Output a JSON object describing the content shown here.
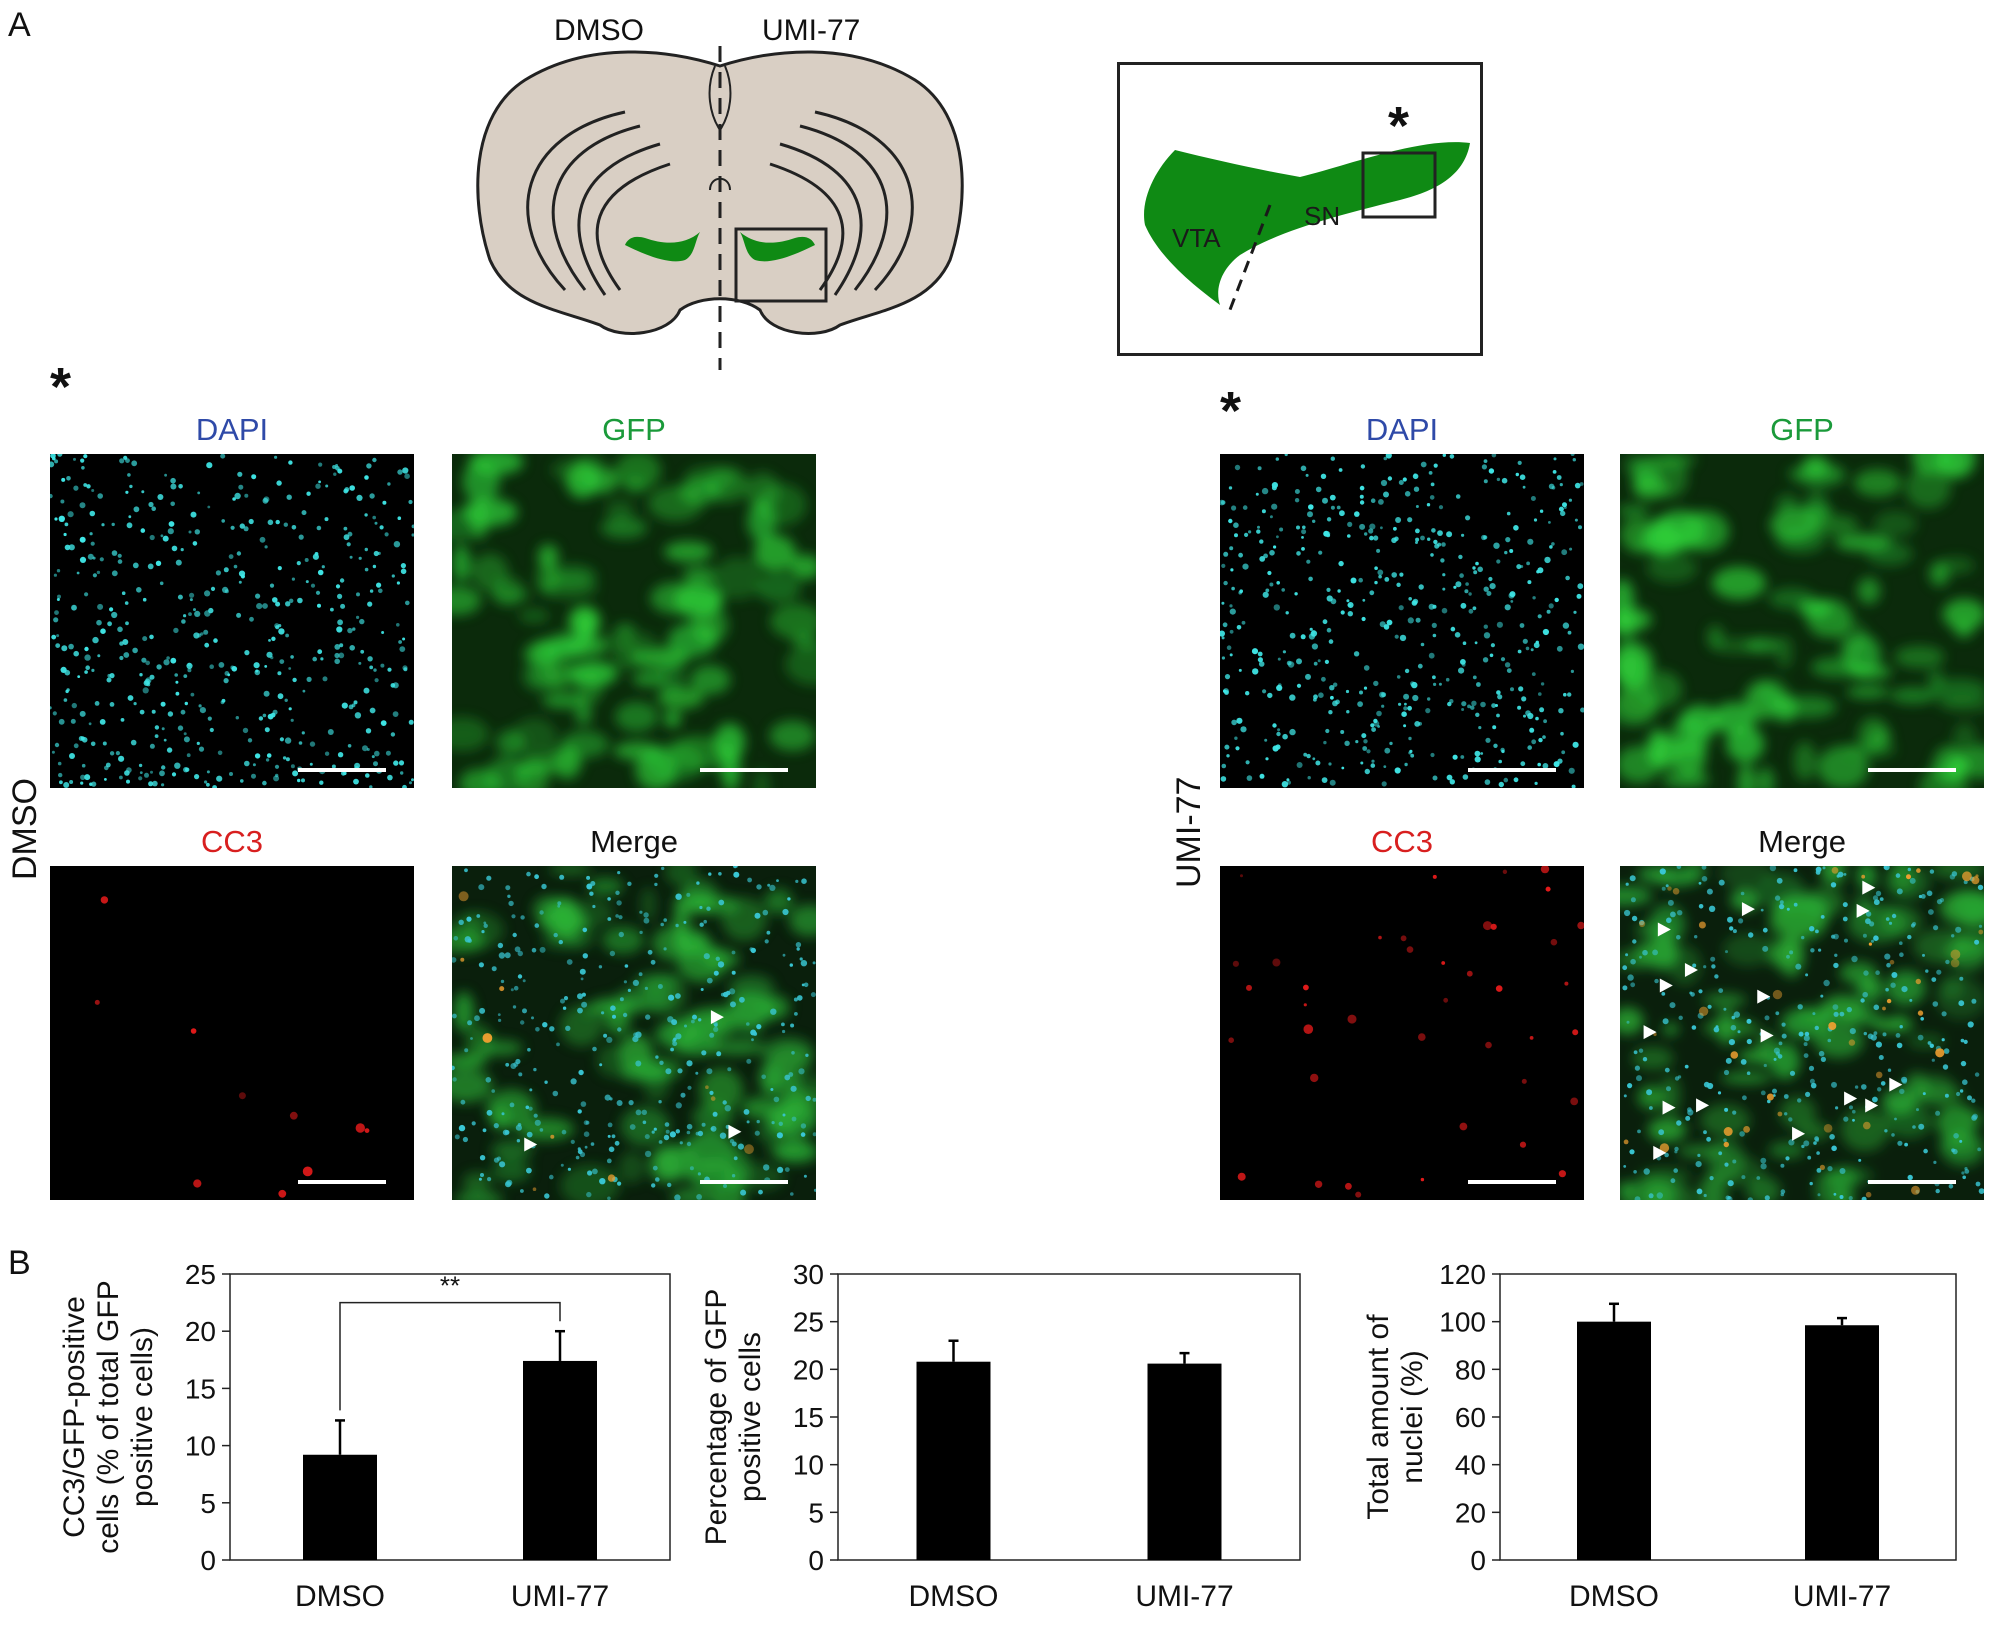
{
  "panel_a": {
    "letter": "A",
    "schematic": {
      "left_label": "DMSO",
      "right_label": "UMI-77"
    },
    "inset": {
      "vta_label": "VTA",
      "sn_label": "SN",
      "star": "*"
    },
    "left_group": {
      "star": "*",
      "condition": "DMSO",
      "channels": {
        "dapi": "DAPI",
        "gfp": "GFP",
        "cc3": "CC3",
        "merge": "Merge"
      }
    },
    "right_group": {
      "star": "*",
      "condition": "UMI-77",
      "channels": {
        "dapi": "DAPI",
        "gfp": "GFP",
        "cc3": "CC3",
        "merge": "Merge"
      }
    },
    "colors": {
      "dapi": "#2f4aa8",
      "gfp": "#1a9a3a",
      "cc3": "#d81f1f",
      "brain": "#d9cfc4",
      "region": "#0f8a14"
    }
  },
  "panel_b": {
    "letter": "B"
  },
  "chart_data": [
    {
      "type": "bar",
      "categories": [
        "DMSO",
        "UMI-77"
      ],
      "values": [
        9.2,
        17.4
      ],
      "errors": [
        3.0,
        2.6
      ],
      "ylabel_lines": [
        "CC3/GFP-positive",
        "cells (% of total GFP",
        "positive cells)"
      ],
      "ylim": [
        0,
        25
      ],
      "yticks": [
        0,
        5,
        10,
        15,
        20,
        25
      ],
      "yticklabels": [
        "0",
        "5",
        "10",
        "15",
        "20",
        "25"
      ],
      "annotation": "**"
    },
    {
      "type": "bar",
      "categories": [
        "DMSO",
        "UMI-77"
      ],
      "values": [
        20.8,
        20.6
      ],
      "errors": [
        2.2,
        1.1
      ],
      "ylabel_lines": [
        "Percentage of GFP",
        "positive cells"
      ],
      "ylim": [
        0,
        30
      ],
      "yticks": [
        0,
        5,
        10,
        15,
        20,
        25,
        30
      ],
      "yticklabels": [
        "0",
        "5",
        "10",
        "15",
        "20",
        "25",
        "30"
      ]
    },
    {
      "type": "bar",
      "categories": [
        "DMSO",
        "UMI-77"
      ],
      "values": [
        100,
        98.5
      ],
      "errors": [
        7.5,
        3.0
      ],
      "ylabel_lines": [
        "Total amount of",
        "nuclei (%)"
      ],
      "ylim": [
        0,
        120
      ],
      "yticks": [
        0,
        20,
        40,
        60,
        80,
        100,
        120
      ],
      "yticklabels": [
        "0",
        "20",
        "40",
        "60",
        "80",
        "100",
        "120"
      ]
    }
  ]
}
